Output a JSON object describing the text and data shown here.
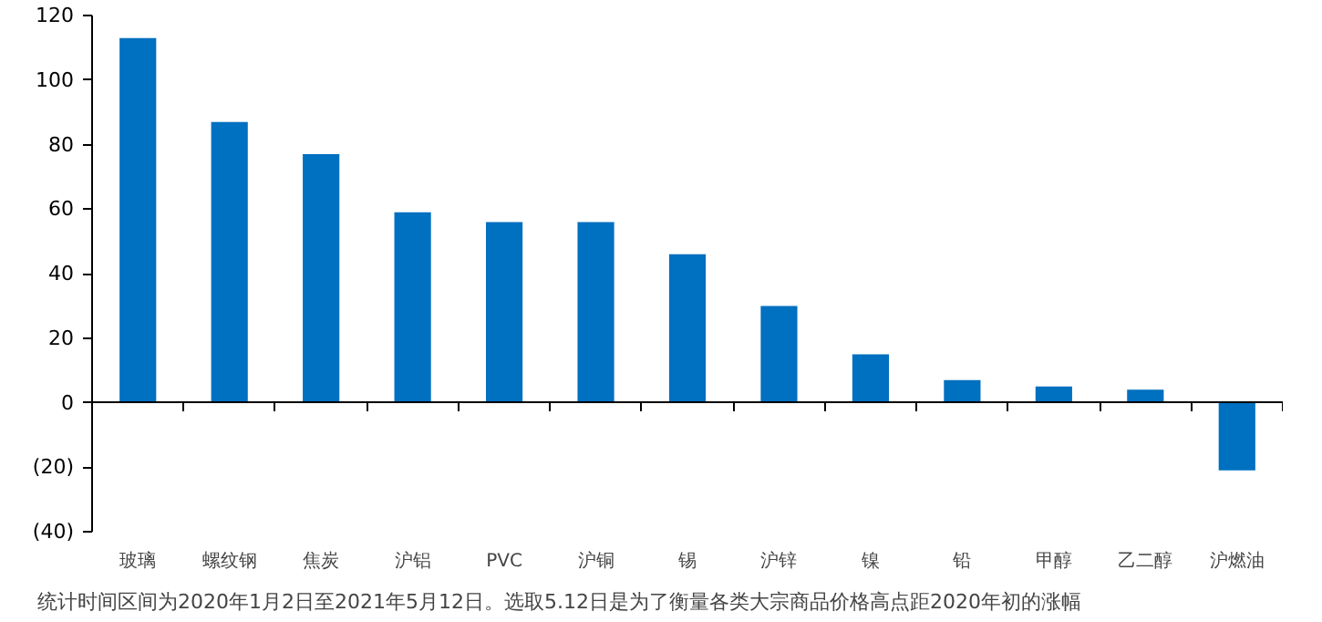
{
  "chart_data": {
    "type": "bar",
    "categories": [
      "玻璃",
      "螺纹钢",
      "焦炭",
      "沪铝",
      "PVC",
      "沪铜",
      "锡",
      "沪锌",
      "镍",
      "铅",
      "甲醇",
      "乙二醇",
      "沪燃油"
    ],
    "values": [
      113,
      87,
      77,
      59,
      56,
      56,
      46,
      30,
      15,
      7,
      5,
      4,
      -21
    ],
    "color": "#0070c0",
    "ylim": [
      -40,
      120
    ],
    "yticks": [
      {
        "value": -40,
        "label": "(40)"
      },
      {
        "value": -20,
        "label": "(20)"
      },
      0,
      20,
      40,
      60,
      80,
      100,
      120
    ],
    "annotations": [
      "统计时间区间为2020年1月2日至2021年5月12日。选取5.12日是为了衡量各类大宗商品价格高点距2020年初的涨幅"
    ]
  }
}
